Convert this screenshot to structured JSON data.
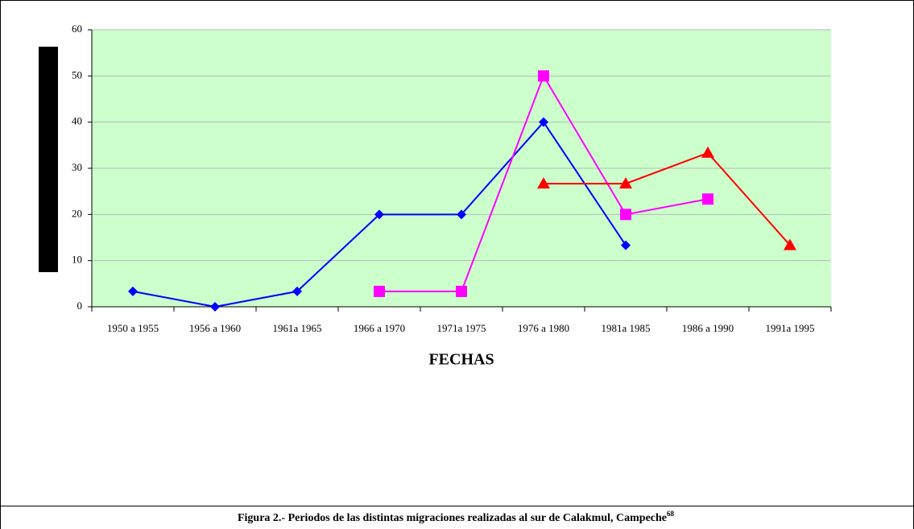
{
  "chart_data": {
    "type": "line",
    "x_label": "FECHAS",
    "caption": "Figura 2.- Periodos de las distintas migraciones realizadas al sur de Calakmul, Campeche",
    "caption_note": "68",
    "categories": [
      "1950 a 1955",
      "1956 a 1960",
      "1961a 1965",
      "1966 a 1970",
      "1971a 1975",
      "1976 a 1980",
      "1981a 1985",
      "1986 a 1990",
      "1991a 1995"
    ],
    "series": [
      {
        "color": "#0000ff",
        "marker": "diamond",
        "values": [
          3.33,
          0,
          3.33,
          20,
          20,
          40,
          13.33,
          null,
          null
        ]
      },
      {
        "color": "#ff00ff",
        "marker": "square",
        "values": [
          null,
          null,
          null,
          3.33,
          3.33,
          50,
          20,
          23.33,
          null
        ]
      },
      {
        "color": "#ff0000",
        "marker": "triangle",
        "values": [
          null,
          null,
          null,
          null,
          null,
          26.67,
          26.67,
          33.33,
          13.33
        ]
      }
    ],
    "ylim": [
      0,
      60
    ],
    "yticks": [
      0,
      10,
      20,
      30,
      40,
      50,
      60
    ],
    "grid": true,
    "background": "#ccffcc"
  }
}
